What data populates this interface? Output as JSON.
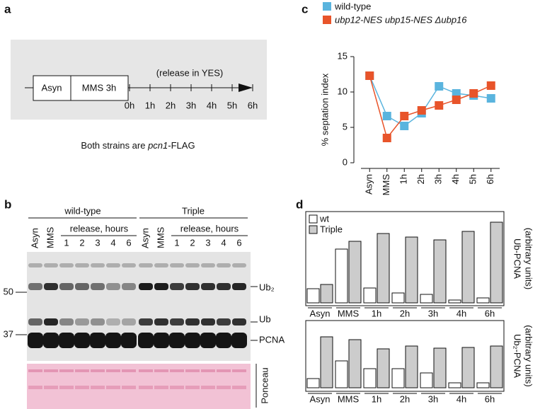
{
  "panels": [
    "a",
    "b",
    "c",
    "d"
  ],
  "timeline": {
    "phases": [
      "Asyn",
      "MMS 3h"
    ],
    "note": "(release in YES)",
    "times": [
      "0h",
      "1h",
      "2h",
      "3h",
      "4h",
      "5h",
      "6h"
    ],
    "caption": [
      "Both strains are ",
      "pcn1",
      "-FLAG"
    ]
  },
  "blot": {
    "groups": [
      "wild-type",
      "Triple"
    ],
    "release": "release, hours",
    "lanes": [
      "Asyn",
      "MMS",
      1,
      2,
      3,
      4,
      6
    ],
    "markers": [
      50,
      37
    ],
    "bands": [
      "Ub₂",
      "Ub",
      "PCNA"
    ],
    "stain": "Ponceau"
  },
  "chart_data": [
    {
      "type": "line",
      "y_label": "% septation index",
      "categories": [
        "Asyn",
        "MMS",
        "1h",
        "2h",
        "3h",
        "4h",
        "5h",
        "6h"
      ],
      "series": [
        {
          "name": "wild-type",
          "color": "#5ab4de",
          "values": [
            12.3,
            6.6,
            5.2,
            7.0,
            10.8,
            9.8,
            9.5,
            9.1
          ]
        },
        {
          "name": "ubp12-NES ubp15-NES Δubp16",
          "color": "#e8542a",
          "values": [
            12.3,
            3.5,
            6.6,
            7.4,
            8.1,
            8.9,
            9.8,
            10.9
          ]
        }
      ],
      "ylim": [
        0,
        15
      ],
      "yticks": [
        0,
        5,
        10,
        15
      ]
    },
    {
      "type": "bar",
      "y_label": [
        "Ub-PCNA",
        "(arbitrary units)"
      ],
      "categories": [
        "Asyn",
        "MMS",
        "1h",
        "2h",
        "3h",
        "4h",
        "6h"
      ],
      "series": [
        {
          "name": "wt",
          "color": "#ffffff",
          "values": [
            20,
            76,
            21,
            14,
            12,
            4,
            7
          ]
        },
        {
          "name": "Triple",
          "color": "#cccccc",
          "values": [
            26,
            87,
            98,
            93,
            89,
            101,
            114
          ]
        }
      ],
      "ylim": [
        0,
        128
      ]
    },
    {
      "type": "bar",
      "y_label": [
        "Ub₂-PCNA",
        "(arbitrary units)"
      ],
      "categories": [
        "Asyn",
        "MMS",
        "1h",
        "2h",
        "3h",
        "4h",
        "6h"
      ],
      "series": [
        {
          "name": "wt",
          "color": "#ffffff",
          "values": [
            13,
            38,
            27,
            27,
            21,
            7,
            7
          ]
        },
        {
          "name": "Triple",
          "color": "#cccccc",
          "values": [
            72,
            68,
            55,
            59,
            56,
            57,
            59
          ]
        }
      ],
      "ylim": [
        0,
        88
      ]
    }
  ]
}
